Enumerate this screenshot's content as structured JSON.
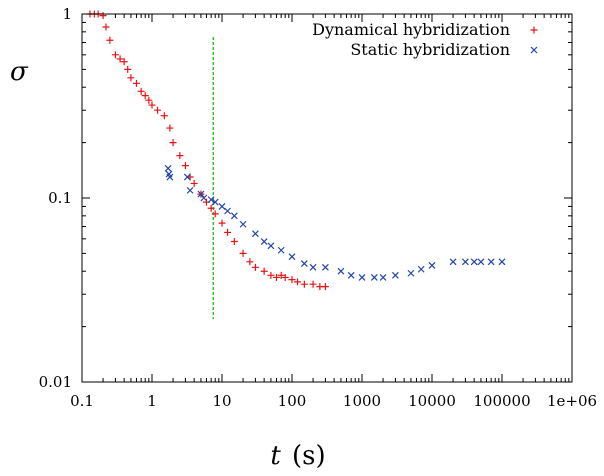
{
  "chart_data": {
    "type": "scatter",
    "title": "",
    "xlabel": "t (s)",
    "xlabel_var": "t",
    "xlabel_unit": "(s)",
    "ylabel": "σ",
    "xscale": "log",
    "yscale": "log",
    "xlim": [
      0.1,
      1000000
    ],
    "ylim": [
      0.01,
      1
    ],
    "xticks": [
      "0.1",
      "1",
      "10",
      "100",
      "1000",
      "10000",
      "100000",
      "1e+06"
    ],
    "yticks": [
      "0.01",
      "0.1",
      "1"
    ],
    "legend_position": "top-right",
    "vertical_line": {
      "x": 7.5,
      "y_from": 0.022,
      "y_to": 0.75,
      "color": "#00bb00"
    },
    "series": [
      {
        "name": "Dynamical hybridization",
        "marker": "+",
        "color": "#ee1111",
        "x": [
          0.13,
          0.15,
          0.17,
          0.2,
          0.22,
          0.25,
          0.3,
          0.35,
          0.4,
          0.45,
          0.5,
          0.6,
          0.7,
          0.8,
          0.9,
          1.0,
          1.2,
          1.5,
          1.8,
          2.0,
          2.5,
          3.0,
          3.5,
          4.0,
          5.0,
          6.0,
          7.0,
          8.0,
          10,
          12,
          15,
          20,
          25,
          30,
          40,
          50,
          60,
          70,
          80,
          100,
          120,
          150,
          200,
          250,
          300
        ],
        "y": [
          1.0,
          1.0,
          1.0,
          0.98,
          0.85,
          0.72,
          0.6,
          0.57,
          0.55,
          0.5,
          0.45,
          0.42,
          0.38,
          0.36,
          0.34,
          0.32,
          0.3,
          0.28,
          0.24,
          0.2,
          0.17,
          0.15,
          0.13,
          0.12,
          0.105,
          0.095,
          0.088,
          0.082,
          0.073,
          0.065,
          0.058,
          0.05,
          0.045,
          0.042,
          0.04,
          0.038,
          0.037,
          0.038,
          0.037,
          0.036,
          0.035,
          0.034,
          0.034,
          0.033,
          0.033
        ]
      },
      {
        "name": "Static hybridization",
        "marker": "x",
        "color": "#2244aa",
        "x": [
          1.7,
          1.75,
          1.8,
          3.2,
          3.5,
          5.0,
          5.5,
          7,
          8,
          10,
          12,
          15,
          20,
          30,
          40,
          50,
          70,
          100,
          150,
          200,
          300,
          500,
          700,
          1000,
          1500,
          2000,
          3000,
          5000,
          7000,
          10000,
          20000,
          30000,
          40000,
          50000,
          70000,
          100000
        ],
        "y": [
          0.145,
          0.135,
          0.13,
          0.13,
          0.11,
          0.105,
          0.1,
          0.098,
          0.095,
          0.09,
          0.085,
          0.08,
          0.072,
          0.064,
          0.058,
          0.055,
          0.052,
          0.048,
          0.044,
          0.042,
          0.042,
          0.04,
          0.038,
          0.037,
          0.037,
          0.037,
          0.038,
          0.039,
          0.041,
          0.043,
          0.045,
          0.045,
          0.045,
          0.045,
          0.045,
          0.045
        ]
      }
    ]
  }
}
